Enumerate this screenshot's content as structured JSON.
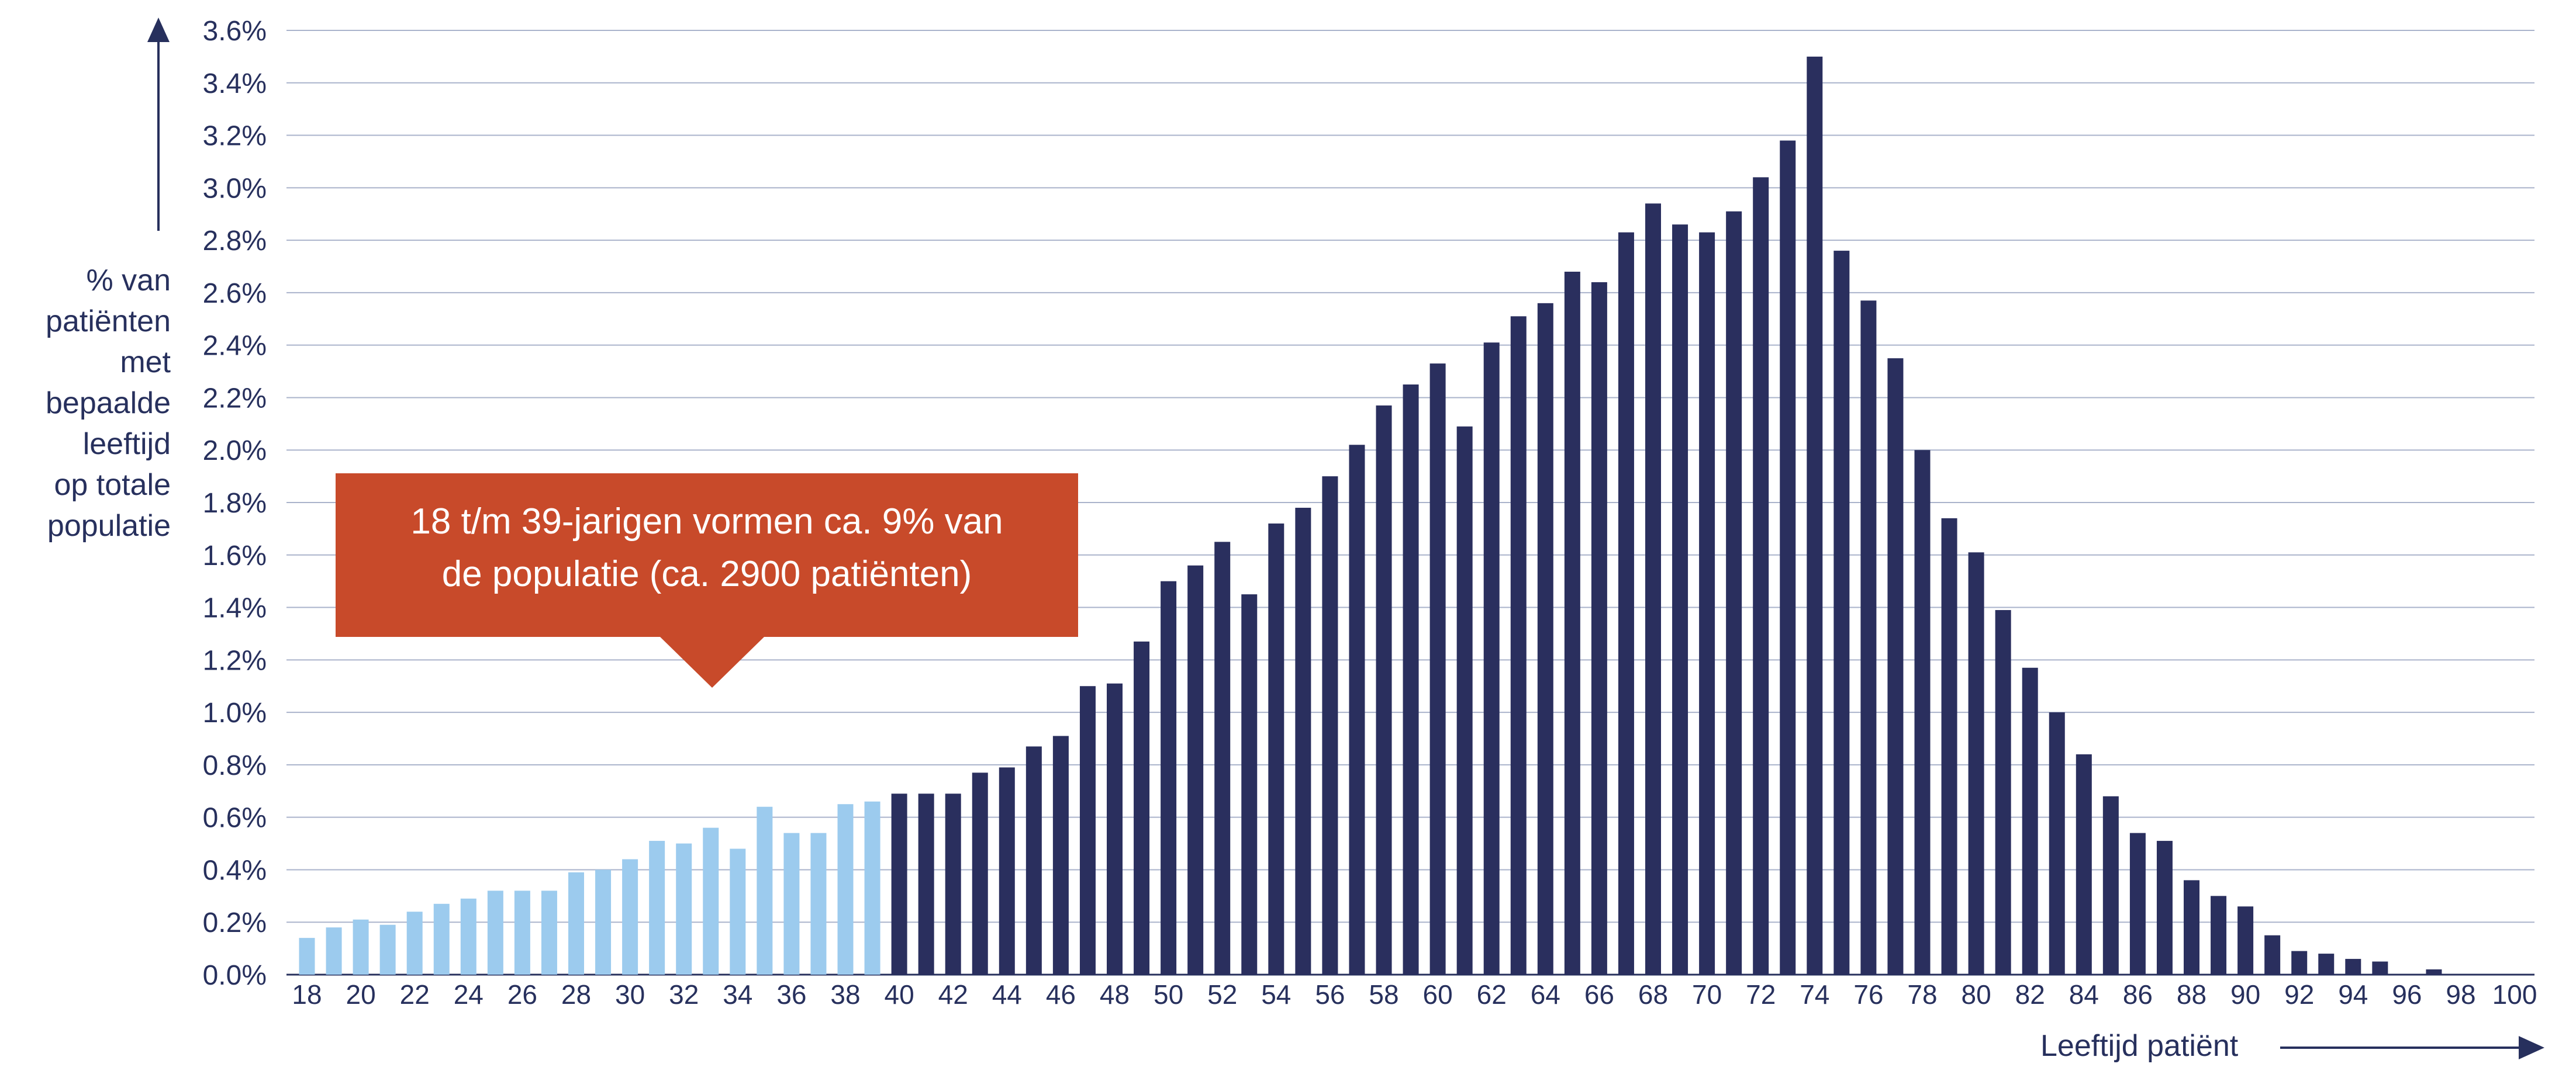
{
  "colors": {
    "young": "#9ccbee",
    "older": "#2a2f5e",
    "grid": "#aab3cb",
    "text": "#27305d",
    "callout_bg": "#c84a2a",
    "callout_text": "#ffffff"
  },
  "y_axis_label_lines": [
    "% van",
    "patiënten",
    "met",
    "bepaalde",
    "leeftijd",
    "op totale",
    "populatie"
  ],
  "x_axis_label": "Leeftijd patiënt",
  "callout": {
    "lines": [
      "18 t/m 39-jarigen vormen ca. 9% van",
      "de populatie (ca. 2900 patiënten)"
    ]
  },
  "chart_data": {
    "type": "bar",
    "title": "",
    "xlabel": "Leeftijd patiënt",
    "ylabel": "% van patiënten met bepaalde leeftijd op totale populatie",
    "ylim": [
      0,
      3.6
    ],
    "y_ticks": [
      "0.0%",
      "0.2%",
      "0.4%",
      "0.6%",
      "0.8%",
      "1.0%",
      "1.2%",
      "1.4%",
      "1.6%",
      "1.8%",
      "2.0%",
      "2.2%",
      "2.4%",
      "2.6%",
      "2.8%",
      "3.0%",
      "3.2%",
      "3.4%",
      "3.6%"
    ],
    "x_tick_labels": [
      "18",
      "20",
      "22",
      "24",
      "26",
      "28",
      "30",
      "32",
      "34",
      "36",
      "38",
      "40",
      "42",
      "44",
      "46",
      "48",
      "50",
      "52",
      "54",
      "56",
      "58",
      "60",
      "62",
      "64",
      "66",
      "68",
      "70",
      "72",
      "74",
      "76",
      "78",
      "80",
      "82",
      "84",
      "86",
      "88",
      "90",
      "92",
      "94",
      "96",
      "98",
      "100"
    ],
    "grid": true,
    "categories": [
      18,
      19,
      20,
      21,
      22,
      23,
      24,
      25,
      26,
      27,
      28,
      29,
      30,
      31,
      32,
      33,
      34,
      35,
      36,
      37,
      38,
      39,
      40,
      41,
      42,
      43,
      44,
      45,
      46,
      47,
      48,
      49,
      50,
      51,
      52,
      53,
      54,
      55,
      56,
      57,
      58,
      59,
      60,
      61,
      62,
      63,
      64,
      65,
      66,
      67,
      68,
      69,
      70,
      71,
      72,
      73,
      74,
      75,
      76,
      77,
      78,
      79,
      80,
      81,
      82,
      83,
      84,
      85,
      86,
      87,
      88,
      89,
      90,
      91,
      92,
      93,
      94,
      95,
      96,
      97,
      98,
      99,
      100
    ],
    "series": [
      {
        "group": "young",
        "x": [
          18,
          19,
          20,
          21,
          22,
          23,
          24,
          25,
          26,
          27,
          28,
          29,
          30,
          31,
          32,
          33,
          34,
          35,
          36,
          37,
          38,
          39
        ],
        "values": [
          0.14,
          0.18,
          0.21,
          0.19,
          0.24,
          0.27,
          0.29,
          0.32,
          0.32,
          0.32,
          0.39,
          0.4,
          0.44,
          0.51,
          0.5,
          0.56,
          0.48,
          0.64,
          0.54,
          0.54,
          0.65,
          0.66
        ]
      },
      {
        "group": "older",
        "x": [
          40,
          41,
          42,
          43,
          44,
          45,
          46,
          47,
          48,
          49,
          50,
          51,
          52,
          53,
          54,
          55,
          56,
          57,
          58,
          59,
          60,
          61,
          62,
          63,
          64,
          65,
          66,
          67,
          68,
          69,
          70,
          71,
          72,
          73,
          74,
          75,
          76,
          77,
          78,
          79,
          80,
          81,
          82,
          83,
          84,
          85,
          86,
          87,
          88,
          89,
          90,
          91,
          92,
          93,
          94,
          95,
          96,
          97,
          98,
          99,
          100
        ],
        "values": [
          0.69,
          0.69,
          0.69,
          0.77,
          0.79,
          0.87,
          0.91,
          1.1,
          1.11,
          1.27,
          1.5,
          1.56,
          1.65,
          1.45,
          1.72,
          1.78,
          1.9,
          2.02,
          2.17,
          2.25,
          2.33,
          2.09,
          2.41,
          2.51,
          2.56,
          2.68,
          2.64,
          2.83,
          2.94,
          2.86,
          2.83,
          2.91,
          3.04,
          3.18,
          3.5,
          2.76,
          2.57,
          2.35,
          2.0,
          1.74,
          1.61,
          1.39,
          1.17,
          1.0,
          0.84,
          0.68,
          0.54,
          0.51,
          0.36,
          0.3,
          0.26,
          0.15,
          0.09,
          0.08,
          0.06,
          0.05,
          0.0,
          0.02,
          0.0,
          0.0,
          0.0
        ]
      }
    ]
  }
}
